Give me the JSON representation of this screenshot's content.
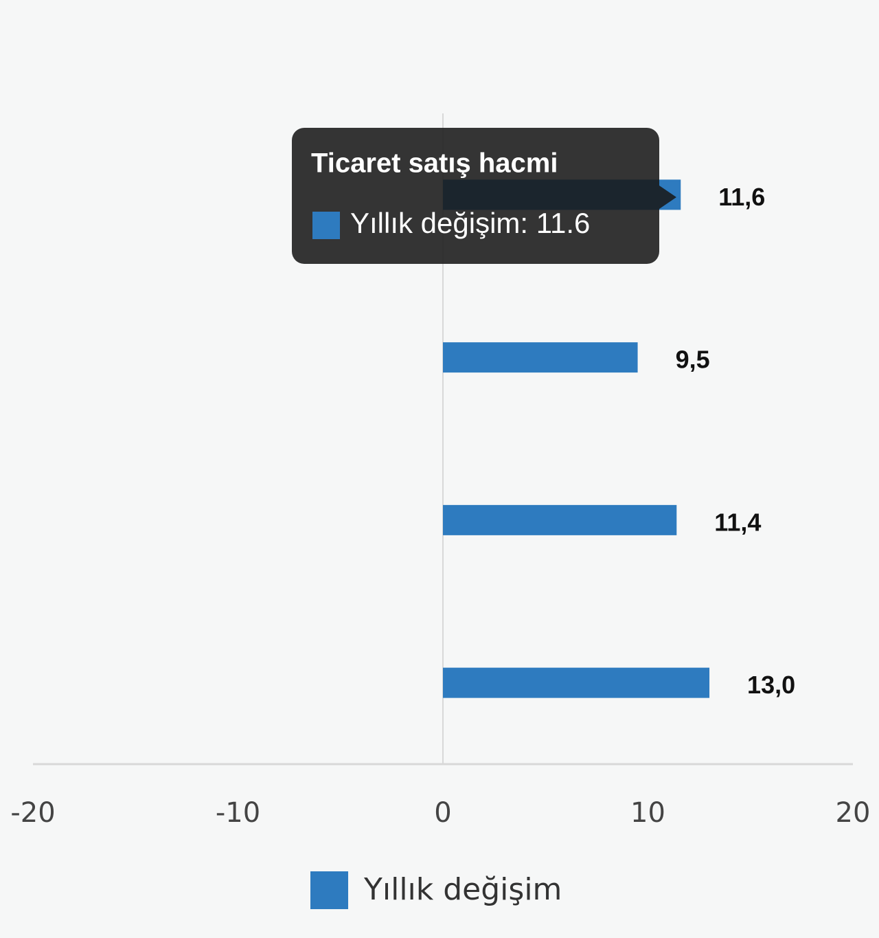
{
  "chart_data": {
    "type": "bar",
    "orientation": "horizontal",
    "categories": [
      "Ticaret satış hacmi",
      null,
      null,
      null
    ],
    "series": [
      {
        "name": "Yıllık değişim",
        "color": "#2e7bbf",
        "values": [
          11.6,
          9.5,
          11.4,
          13.0
        ],
        "value_labels": [
          "11,6",
          "9,5",
          "11,4",
          "13,0"
        ]
      }
    ],
    "xlim": [
      -20,
      20
    ],
    "xticks": [
      -20,
      -10,
      0,
      10,
      20
    ],
    "grid": false,
    "legend": "bottom",
    "tooltip": {
      "category": 0,
      "label": "Yıllık değişim: 11.6"
    }
  }
}
